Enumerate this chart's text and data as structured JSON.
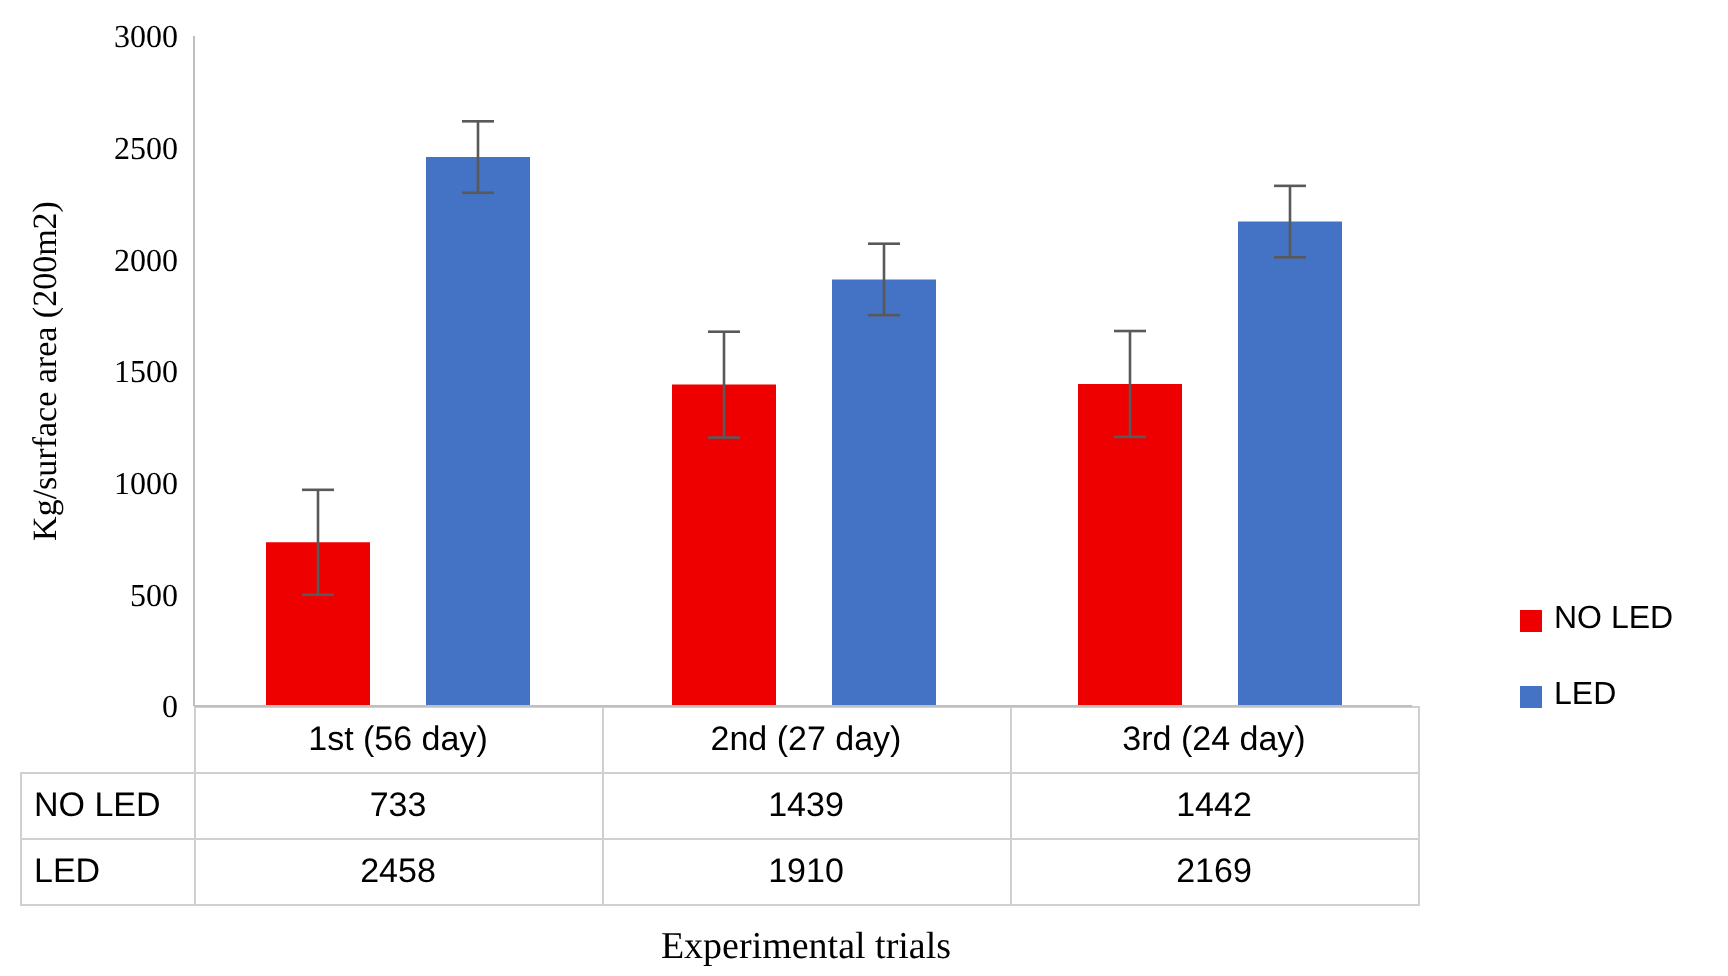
{
  "chart_data": {
    "type": "bar",
    "xlabel": "Experimental trials",
    "ylabel": "Kg/surface area (200m2)",
    "categories": [
      "1st (56 day)",
      "2nd (27 day)",
      "3rd (24 day)"
    ],
    "series": [
      {
        "name": "NO LED",
        "color": "#ee0000",
        "values": [
          733,
          1439,
          1442
        ],
        "errors": [
          235,
          237,
          237
        ]
      },
      {
        "name": "LED",
        "color": "#4472c4",
        "values": [
          2458,
          1910,
          2169
        ],
        "errors": [
          160,
          160,
          160
        ]
      }
    ],
    "ylim": [
      0,
      3000
    ],
    "yticks": [
      0,
      500,
      1000,
      1500,
      2000,
      2500,
      3000
    ],
    "grid": false,
    "legend": "right",
    "data_labels": true
  }
}
